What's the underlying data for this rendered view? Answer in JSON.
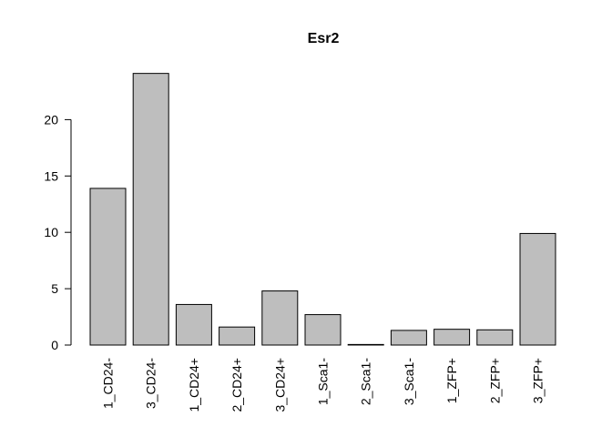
{
  "chart_data": {
    "type": "bar",
    "title": "Esr2",
    "xlabel": "",
    "ylabel": "",
    "categories": [
      "1_CD24-",
      "3_CD24-",
      "1_CD24+",
      "2_CD24+",
      "3_CD24+",
      "1_Sca1-",
      "2_Sca1-",
      "3_Sca1-",
      "1_ZFP+",
      "2_ZFP+",
      "3_ZFP+"
    ],
    "values": [
      13.9,
      24.1,
      3.6,
      1.6,
      4.8,
      2.7,
      0.05,
      1.3,
      1.4,
      1.35,
      9.9
    ],
    "ylim": [
      0,
      24.1
    ],
    "yticks": [
      0,
      5,
      10,
      15,
      20
    ],
    "bar_color": "#bebebe",
    "grid": false,
    "legend": "none"
  }
}
